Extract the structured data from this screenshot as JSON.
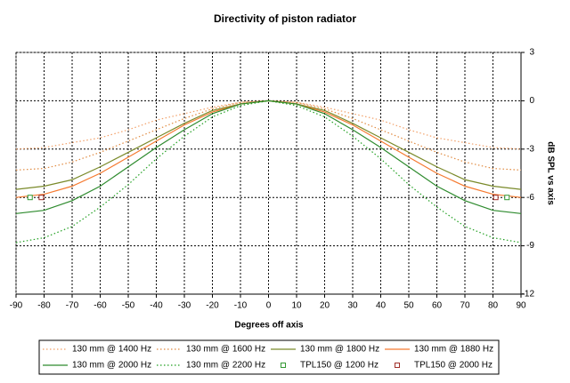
{
  "chart_data": {
    "type": "line",
    "title": "Directivity of piston radiator",
    "x_label": "Degrees off axis",
    "y_label": "dB SPL vs axis",
    "x": [
      -90,
      -80,
      -70,
      -60,
      -50,
      -40,
      -30,
      -20,
      -10,
      0,
      10,
      20,
      30,
      40,
      50,
      60,
      70,
      80,
      90
    ],
    "xlim": [
      -90,
      90
    ],
    "xticks": [
      -90,
      -80,
      -70,
      -60,
      -50,
      -40,
      -30,
      -20,
      -10,
      0,
      10,
      20,
      30,
      40,
      50,
      60,
      70,
      80,
      90
    ],
    "ylim": [
      -12,
      3
    ],
    "yticks": [
      -12,
      -9,
      -6,
      -3,
      0,
      3
    ],
    "grid": true,
    "y_axis_side": "right",
    "series": [
      {
        "name": "130 mm @ 1400 Hz",
        "color": "#f2a068",
        "style": "dotted",
        "values": [
          -3.0,
          -2.9,
          -2.6,
          -2.3,
          -1.8,
          -1.2,
          -0.8,
          -0.4,
          -0.1,
          0,
          -0.1,
          -0.4,
          -0.8,
          -1.2,
          -1.8,
          -2.3,
          -2.6,
          -2.9,
          -3.0
        ]
      },
      {
        "name": "130 mm @ 1600 Hz",
        "color": "#e08a40",
        "style": "dotted",
        "values": [
          -4.3,
          -4.2,
          -3.8,
          -3.2,
          -2.5,
          -1.8,
          -1.1,
          -0.5,
          -0.1,
          0,
          -0.1,
          -0.5,
          -1.1,
          -1.8,
          -2.5,
          -3.2,
          -3.8,
          -4.2,
          -4.3
        ]
      },
      {
        "name": "130 mm @ 1800 Hz",
        "color": "#7a8a2a",
        "style": "solid",
        "values": [
          -5.5,
          -5.3,
          -4.9,
          -4.1,
          -3.2,
          -2.3,
          -1.4,
          -0.6,
          -0.2,
          0,
          -0.2,
          -0.6,
          -1.4,
          -2.3,
          -3.2,
          -4.1,
          -4.9,
          -5.3,
          -5.5
        ]
      },
      {
        "name": "130 mm @ 1880 Hz",
        "color": "#f57a30",
        "style": "solid",
        "values": [
          -6.0,
          -5.8,
          -5.3,
          -4.5,
          -3.5,
          -2.5,
          -1.5,
          -0.7,
          -0.2,
          0,
          -0.2,
          -0.7,
          -1.5,
          -2.5,
          -3.5,
          -4.5,
          -5.3,
          -5.8,
          -6.0
        ]
      },
      {
        "name": "130 mm @ 2000 Hz",
        "color": "#2e8b2e",
        "style": "solid",
        "values": [
          -7.0,
          -6.8,
          -6.2,
          -5.3,
          -4.1,
          -2.9,
          -1.8,
          -0.8,
          -0.2,
          0,
          -0.2,
          -0.8,
          -1.8,
          -2.9,
          -4.1,
          -5.3,
          -6.2,
          -6.8,
          -7.0
        ]
      },
      {
        "name": "130 mm @ 2200 Hz",
        "color": "#22a022",
        "style": "dotted",
        "values": [
          -8.8,
          -8.5,
          -7.8,
          -6.6,
          -5.2,
          -3.6,
          -2.2,
          -1.0,
          -0.3,
          0,
          -0.3,
          -1.0,
          -2.2,
          -3.6,
          -5.2,
          -6.6,
          -7.8,
          -8.5,
          -8.8
        ]
      },
      {
        "name": "TPL150 @ 1200 Hz",
        "color": "#339933",
        "style": "marker",
        "x": [
          -85,
          85
        ],
        "values": [
          -6,
          -6
        ]
      },
      {
        "name": "TPL150 @ 2000 Hz",
        "color": "#a0302a",
        "style": "marker",
        "x": [
          -81,
          81
        ],
        "values": [
          -6,
          -6
        ]
      }
    ]
  }
}
